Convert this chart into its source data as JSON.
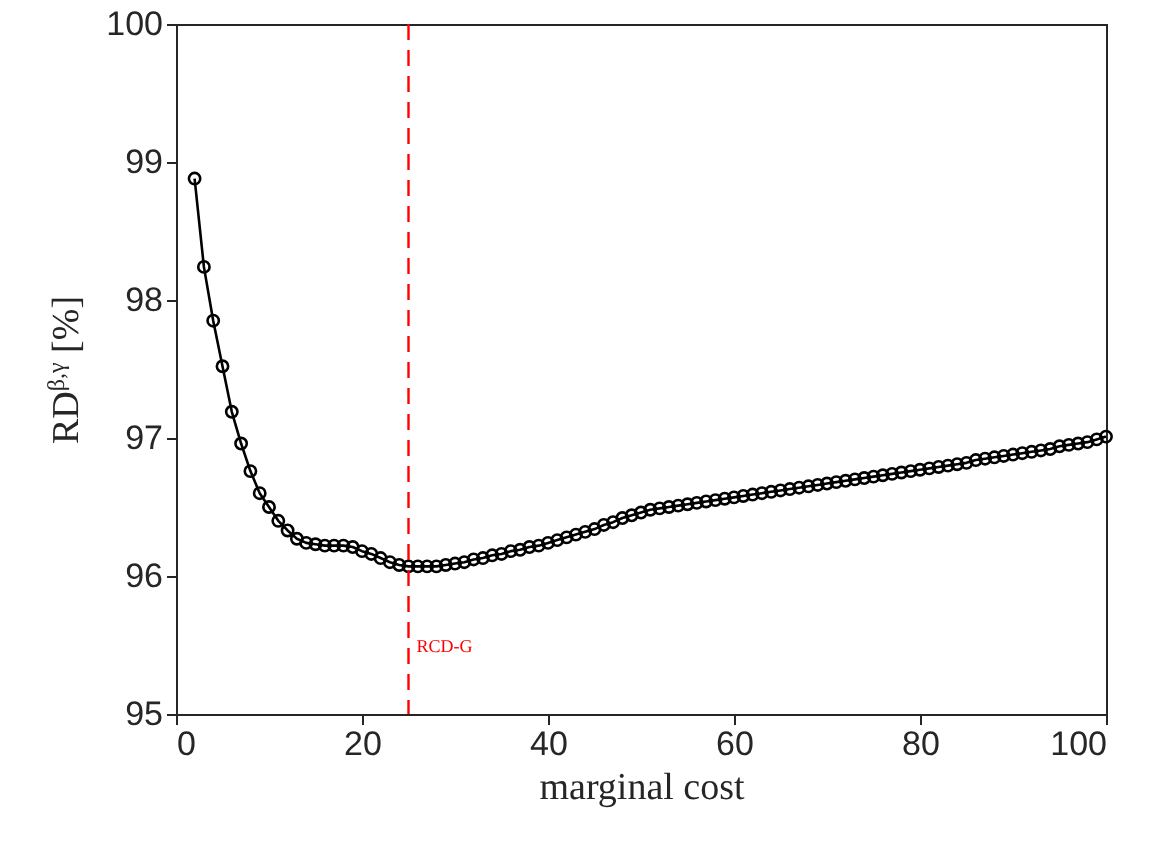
{
  "chart_data": {
    "type": "line",
    "xlabel": "marginal cost",
    "ylabel": "RD$^{β,γ}$ [%]",
    "x": [
      2,
      3,
      4,
      5,
      6,
      7,
      8,
      9,
      10,
      11,
      12,
      13,
      14,
      15,
      16,
      17,
      18,
      19,
      20,
      21,
      22,
      23,
      24,
      25,
      26,
      27,
      28,
      29,
      30,
      31,
      32,
      33,
      34,
      35,
      36,
      37,
      38,
      39,
      40,
      41,
      42,
      43,
      44,
      45,
      46,
      47,
      48,
      49,
      50,
      51,
      52,
      53,
      54,
      55,
      56,
      57,
      58,
      59,
      60,
      61,
      62,
      63,
      64,
      65,
      66,
      67,
      68,
      69,
      70,
      71,
      72,
      73,
      74,
      75,
      76,
      77,
      78,
      79,
      80,
      81,
      82,
      83,
      84,
      85,
      86,
      87,
      88,
      89,
      90,
      91,
      92,
      93,
      94,
      95,
      96,
      97,
      98,
      99,
      100
    ],
    "series": [
      {
        "color": "#000000",
        "values": [
          98.88,
          98.24,
          97.85,
          97.52,
          97.19,
          96.96,
          96.76,
          96.6,
          96.5,
          96.4,
          96.33,
          96.27,
          96.24,
          96.23,
          96.22,
          96.22,
          96.22,
          96.21,
          96.18,
          96.16,
          96.13,
          96.1,
          96.08,
          96.07,
          96.07,
          96.07,
          96.07,
          96.08,
          96.09,
          96.1,
          96.12,
          96.13,
          96.15,
          96.16,
          96.18,
          96.19,
          96.21,
          96.22,
          96.24,
          96.26,
          96.28,
          96.3,
          96.32,
          96.34,
          96.37,
          96.39,
          96.42,
          96.44,
          96.46,
          96.48,
          96.49,
          96.5,
          96.51,
          96.52,
          96.53,
          96.54,
          96.55,
          96.56,
          96.57,
          96.58,
          96.59,
          96.6,
          96.61,
          96.62,
          96.63,
          96.64,
          96.65,
          96.66,
          96.67,
          96.68,
          96.69,
          96.7,
          96.71,
          96.72,
          96.73,
          96.74,
          96.75,
          96.76,
          96.77,
          96.78,
          96.79,
          96.8,
          96.81,
          96.82,
          96.84,
          96.85,
          96.86,
          96.87,
          96.88,
          96.89,
          96.9,
          96.91,
          96.92,
          96.94,
          96.95,
          96.96,
          96.97,
          96.99,
          97.01
        ]
      }
    ],
    "xlim": [
      0,
      100
    ],
    "xticks": [
      0,
      20,
      40,
      60,
      80,
      100
    ],
    "ylim": [
      95,
      100
    ],
    "yticks": [
      95,
      96,
      97,
      98,
      99,
      100
    ],
    "marker": "circle",
    "line_style": "solid",
    "ref_lines": [
      {
        "axis": "x",
        "value": 25,
        "label": "RCD-G",
        "color": "#ff0000",
        "line_style": "dashed"
      }
    ]
  }
}
